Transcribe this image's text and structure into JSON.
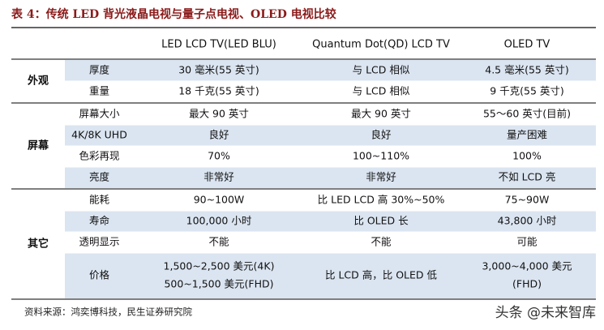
{
  "header": {
    "title": "表 4：传统 LED 背光液晶电视与量子点电视、OLED 电视比较"
  },
  "table": {
    "columns": [
      "LED LCD TV(LED BLU)",
      "Quantum Dot(QD) LCD TV",
      "OLED TV"
    ],
    "groups": [
      {
        "name": "外观",
        "rows": [
          {
            "item": "厚度",
            "values": [
              "30 毫米(55 英寸)",
              "与 LCD 相似",
              "4.5 毫米(55 英寸)"
            ]
          },
          {
            "item": "重量",
            "values": [
              "18 千克(55 英寸)",
              "与 LCD 相似",
              "9 千克(55 英寸)"
            ]
          }
        ]
      },
      {
        "name": "屏幕",
        "rows": [
          {
            "item": "屏幕大小",
            "values": [
              "最大 90 英寸",
              "最大 90 英寸",
              "55～60 英寸(目前)"
            ]
          },
          {
            "item": "4K/8K UHD",
            "values": [
              "良好",
              "良好",
              "量产困难"
            ]
          },
          {
            "item": "色彩再现",
            "values": [
              "70%",
              "100~110%",
              "100%"
            ]
          },
          {
            "item": "亮度",
            "values": [
              "非常好",
              "非常好",
              "不如 LCD 亮"
            ]
          }
        ]
      },
      {
        "name": "其它",
        "rows": [
          {
            "item": "能耗",
            "values": [
              "90~100W",
              "比 LED LCD 高 30%~50%",
              "75~90W"
            ]
          },
          {
            "item": "寿命",
            "values": [
              "100,000 小时",
              "比 OLED 长",
              "43,800 小时"
            ]
          },
          {
            "item": "透明显示",
            "values": [
              "不能",
              "不能",
              "可能"
            ]
          },
          {
            "item": "价格",
            "values": [
              [
                "1,500~2,500 美元(4K)",
                "500~1,500 美元(FHD)"
              ],
              "比 LCD 高，比 OLED 低",
              [
                "3,000~4,000 美元",
                "(FHD)"
              ]
            ]
          }
        ]
      }
    ]
  },
  "footer": {
    "source": "资料来源：鸿奕博科技，民生证券研究院",
    "watermark": "头条 @未来智库"
  }
}
